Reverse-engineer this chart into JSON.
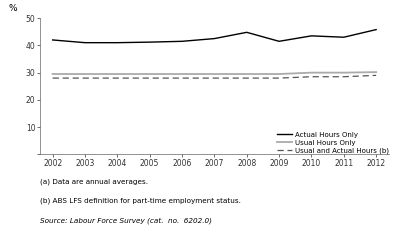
{
  "years": [
    2002,
    2003,
    2004,
    2005,
    2006,
    2007,
    2008,
    2009,
    2010,
    2011,
    2012
  ],
  "actual_hours": [
    42.0,
    41.0,
    41.0,
    41.2,
    41.5,
    42.5,
    44.8,
    41.5,
    43.5,
    43.0,
    45.8
  ],
  "usual_hours": [
    29.5,
    29.5,
    29.5,
    29.5,
    29.5,
    29.5,
    29.5,
    29.5,
    30.0,
    30.0,
    30.2
  ],
  "usual_actual": [
    28.0,
    28.0,
    28.0,
    28.0,
    28.0,
    28.0,
    28.0,
    28.0,
    28.5,
    28.5,
    29.0
  ],
  "ylim": [
    0,
    50
  ],
  "yticks": [
    0,
    10,
    20,
    30,
    40,
    50
  ],
  "ylabel": "%",
  "actual_color": "#000000",
  "usual_color": "#aaaaaa",
  "dashed_color": "#555555",
  "legend_labels": [
    "Actual Hours Only",
    "Usual Hours Only",
    "Usual and Actual Hours (b)"
  ],
  "note1": "(a) Data are annual averages.",
  "note2": "(b) ABS LFS definition for part-time employment status.",
  "source": "Source: Labour Force Survey (cat.  no.  6202.0)",
  "background": "#ffffff"
}
